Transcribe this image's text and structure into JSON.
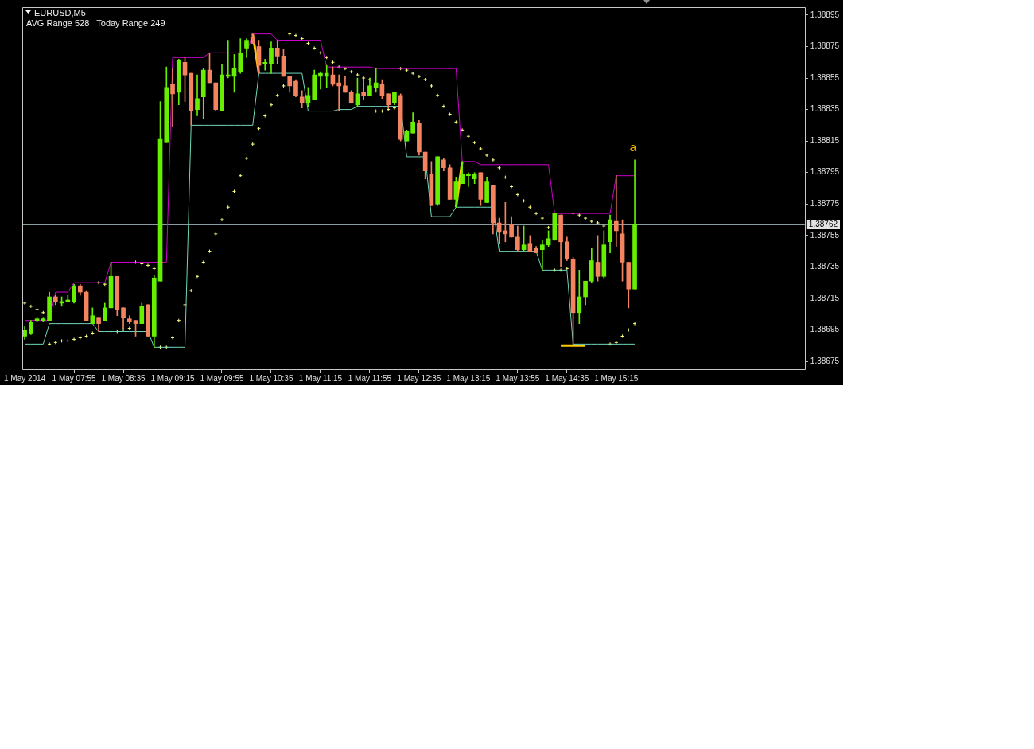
{
  "chart_data": {
    "type": "candlestick",
    "title": "EURUSD,M5",
    "subtitle": "AVG Range 528   Today Range 249",
    "x": [
      "2014-05-01T07:15",
      "2014-05-01T07:20",
      "2014-05-01T07:25",
      "2014-05-01T07:30",
      "2014-05-01T07:35",
      "2014-05-01T07:40",
      "2014-05-01T07:45",
      "2014-05-01T07:50",
      "2014-05-01T07:55",
      "2014-05-01T08:00",
      "2014-05-01T08:05",
      "2014-05-01T08:10",
      "2014-05-01T08:15",
      "2014-05-01T08:20",
      "2014-05-01T08:25",
      "2014-05-01T08:30",
      "2014-05-01T08:35",
      "2014-05-01T08:40",
      "2014-05-01T08:45",
      "2014-05-01T08:50",
      "2014-05-01T08:55",
      "2014-05-01T09:00",
      "2014-05-01T09:05",
      "2014-05-01T09:10",
      "2014-05-01T09:15",
      "2014-05-01T09:20",
      "2014-05-01T09:25",
      "2014-05-01T09:30",
      "2014-05-01T09:35",
      "2014-05-01T09:40",
      "2014-05-01T09:45",
      "2014-05-01T09:50",
      "2014-05-01T09:55",
      "2014-05-01T10:00",
      "2014-05-01T10:05",
      "2014-05-01T10:10",
      "2014-05-01T10:15",
      "2014-05-01T10:20",
      "2014-05-01T10:25",
      "2014-05-01T10:30",
      "2014-05-01T10:35",
      "2014-05-01T10:40",
      "2014-05-01T10:45",
      "2014-05-01T10:50",
      "2014-05-01T10:55",
      "2014-05-01T11:00",
      "2014-05-01T11:05",
      "2014-05-01T11:10",
      "2014-05-01T11:15",
      "2014-05-01T11:20",
      "2014-05-01T11:25",
      "2014-05-01T11:30",
      "2014-05-01T11:35",
      "2014-05-01T11:40",
      "2014-05-01T11:45",
      "2014-05-01T11:50",
      "2014-05-01T11:55",
      "2014-05-01T12:00",
      "2014-05-01T12:05",
      "2014-05-01T12:10",
      "2014-05-01T12:15",
      "2014-05-01T12:20",
      "2014-05-01T12:25",
      "2014-05-01T12:30",
      "2014-05-01T12:35",
      "2014-05-01T12:40",
      "2014-05-01T12:45",
      "2014-05-01T12:50",
      "2014-05-01T12:55",
      "2014-05-01T13:00",
      "2014-05-01T13:05",
      "2014-05-01T13:10",
      "2014-05-01T13:15",
      "2014-05-01T13:20",
      "2014-05-01T13:25",
      "2014-05-01T13:30",
      "2014-05-01T13:35",
      "2014-05-01T13:40",
      "2014-05-01T13:45",
      "2014-05-01T13:50",
      "2014-05-01T13:55",
      "2014-05-01T14:00",
      "2014-05-01T14:05",
      "2014-05-01T14:10",
      "2014-05-01T14:15",
      "2014-05-01T14:20",
      "2014-05-01T14:25",
      "2014-05-01T14:30",
      "2014-05-01T14:35",
      "2014-05-01T14:40",
      "2014-05-01T14:45",
      "2014-05-01T14:50",
      "2014-05-01T14:55",
      "2014-05-01T15:00",
      "2014-05-01T15:05",
      "2014-05-01T15:10",
      "2014-05-01T15:15",
      "2014-05-01T15:20",
      "2014-05-01T15:25",
      "2014-05-01T15:30"
    ],
    "ohlc": [
      [
        1.38691,
        1.38697,
        1.38689,
        1.38695
      ],
      [
        1.38693,
        1.38701,
        1.38692,
        1.387
      ],
      [
        1.38701,
        1.38703,
        1.387,
        1.38702
      ],
      [
        1.38701,
        1.38703,
        1.387,
        1.38702
      ],
      [
        1.38701,
        1.38719,
        1.38701,
        1.38716
      ],
      [
        1.38716,
        1.38717,
        1.38711,
        1.38713
      ],
      [
        1.38712,
        1.38716,
        1.3871,
        1.38713
      ],
      [
        1.38713,
        1.38717,
        1.38713,
        1.38714
      ],
      [
        1.38713,
        1.38724,
        1.38712,
        1.38723
      ],
      [
        1.38723,
        1.38724,
        1.38717,
        1.38719
      ],
      [
        1.38719,
        1.3872,
        1.38701,
        1.38701
      ],
      [
        1.38699,
        1.38709,
        1.38699,
        1.38704
      ],
      [
        1.38703,
        1.38703,
        1.38694,
        1.38699
      ],
      [
        1.38701,
        1.38712,
        1.38701,
        1.38709
      ],
      [
        1.38709,
        1.38738,
        1.38709,
        1.38729
      ],
      [
        1.38729,
        1.38729,
        1.38704,
        1.38708
      ],
      [
        1.38709,
        1.38709,
        1.38696,
        1.38703
      ],
      [
        1.38702,
        1.38704,
        1.38699,
        1.387
      ],
      [
        1.38701,
        1.38701,
        1.38691,
        1.38699
      ],
      [
        1.38699,
        1.38712,
        1.38699,
        1.3871
      ],
      [
        1.38711,
        1.38711,
        1.38691,
        1.38691
      ],
      [
        1.38691,
        1.3873,
        1.38684,
        1.38728
      ],
      [
        1.38726,
        1.3884,
        1.38726,
        1.38816
      ],
      [
        1.38814,
        1.38862,
        1.38814,
        1.38849
      ],
      [
        1.38851,
        1.38861,
        1.38824,
        1.38845
      ],
      [
        1.38846,
        1.38867,
        1.38838,
        1.38866
      ],
      [
        1.38865,
        1.38868,
        1.3884,
        1.38857
      ],
      [
        1.38858,
        1.38858,
        1.38825,
        1.38834
      ],
      [
        1.38835,
        1.38857,
        1.38831,
        1.38842
      ],
      [
        1.38843,
        1.38861,
        1.38829,
        1.3886
      ],
      [
        1.3886,
        1.38871,
        1.38852,
        1.38852
      ],
      [
        1.38852,
        1.38852,
        1.38834,
        1.38835
      ],
      [
        1.38834,
        1.38864,
        1.38834,
        1.38857
      ],
      [
        1.38856,
        1.38879,
        1.38855,
        1.38857
      ],
      [
        1.38856,
        1.3887,
        1.38846,
        1.38861
      ],
      [
        1.38859,
        1.3888,
        1.38858,
        1.38871
      ],
      [
        1.38874,
        1.3888,
        1.38868,
        1.38879
      ],
      [
        1.38881,
        1.38883,
        1.38877,
        1.38877
      ],
      [
        1.38875,
        1.38879,
        1.38858,
        1.38863
      ],
      [
        1.38864,
        1.38867,
        1.3886,
        1.38865
      ],
      [
        1.38864,
        1.38878,
        1.38858,
        1.38874
      ],
      [
        1.38874,
        1.38879,
        1.38864,
        1.38869
      ],
      [
        1.38869,
        1.38873,
        1.38856,
        1.38856
      ],
      [
        1.38856,
        1.38856,
        1.38846,
        1.3885
      ],
      [
        1.38853,
        1.38854,
        1.38843,
        1.38844
      ],
      [
        1.38843,
        1.38847,
        1.38836,
        1.38839
      ],
      [
        1.38839,
        1.38849,
        1.38837,
        1.38844
      ],
      [
        1.38841,
        1.3886,
        1.38841,
        1.38857
      ],
      [
        1.38856,
        1.38859,
        1.38848,
        1.38858
      ],
      [
        1.38856,
        1.38863,
        1.38849,
        1.38858
      ],
      [
        1.38857,
        1.38862,
        1.3885,
        1.38851
      ],
      [
        1.38852,
        1.38857,
        1.38834,
        1.3885
      ],
      [
        1.3885,
        1.38856,
        1.38846,
        1.38846
      ],
      [
        1.38846,
        1.38847,
        1.38839,
        1.38839
      ],
      [
        1.38838,
        1.38855,
        1.38837,
        1.38845
      ],
      [
        1.38846,
        1.38854,
        1.38841,
        1.38844
      ],
      [
        1.38844,
        1.38855,
        1.38844,
        1.3885
      ],
      [
        1.38849,
        1.38861,
        1.38846,
        1.38852
      ],
      [
        1.38851,
        1.38854,
        1.38842,
        1.38844
      ],
      [
        1.38845,
        1.38845,
        1.38836,
        1.38838
      ],
      [
        1.38839,
        1.38846,
        1.38838,
        1.38846
      ],
      [
        1.38844,
        1.38845,
        1.38815,
        1.38816
      ],
      [
        1.38815,
        1.38822,
        1.38815,
        1.38821
      ],
      [
        1.3882,
        1.38833,
        1.3882,
        1.38827
      ],
      [
        1.38826,
        1.38828,
        1.38806,
        1.38808
      ],
      [
        1.38808,
        1.38808,
        1.38791,
        1.38796
      ],
      [
        1.38794,
        1.38802,
        1.38774,
        1.38774
      ],
      [
        1.38775,
        1.38805,
        1.38774,
        1.38805
      ],
      [
        1.38803,
        1.38804,
        1.38796,
        1.38798
      ],
      [
        1.38798,
        1.388,
        1.38778,
        1.38778
      ],
      [
        1.38778,
        1.38792,
        1.38773,
        1.38789
      ],
      [
        1.38788,
        1.38802,
        1.38788,
        1.38794
      ],
      [
        1.38793,
        1.38795,
        1.38786,
        1.38794
      ],
      [
        1.38791,
        1.38795,
        1.38788,
        1.38794
      ],
      [
        1.38795,
        1.38795,
        1.38774,
        1.38778
      ],
      [
        1.38776,
        1.38792,
        1.38776,
        1.38789
      ],
      [
        1.38787,
        1.38787,
        1.38756,
        1.38763
      ],
      [
        1.38763,
        1.38766,
        1.3875,
        1.38757
      ],
      [
        1.38758,
        1.38776,
        1.38751,
        1.38756
      ],
      [
        1.38762,
        1.38767,
        1.38754,
        1.38754
      ],
      [
        1.38754,
        1.38761,
        1.38745,
        1.38746
      ],
      [
        1.38746,
        1.38761,
        1.38745,
        1.38749
      ],
      [
        1.3875,
        1.38755,
        1.38745,
        1.38745
      ],
      [
        1.38747,
        1.38748,
        1.38744,
        1.38744
      ],
      [
        1.38746,
        1.38752,
        1.38733,
        1.38749
      ],
      [
        1.38749,
        1.38758,
        1.38748,
        1.38753
      ],
      [
        1.38752,
        1.38769,
        1.38752,
        1.38769
      ],
      [
        1.38768,
        1.38768,
        1.38735,
        1.38751
      ],
      [
        1.38751,
        1.38754,
        1.38739,
        1.3874
      ],
      [
        1.3874,
        1.38741,
        1.38686,
        1.38706
      ],
      [
        1.38706,
        1.38733,
        1.38699,
        1.38716
      ],
      [
        1.38716,
        1.38726,
        1.38711,
        1.38726
      ],
      [
        1.38726,
        1.38747,
        1.38725,
        1.38739
      ],
      [
        1.38738,
        1.38755,
        1.38726,
        1.38729
      ],
      [
        1.38729,
        1.38758,
        1.38728,
        1.38749
      ],
      [
        1.38751,
        1.38768,
        1.38744,
        1.38765
      ],
      [
        1.38764,
        1.38793,
        1.38748,
        1.38758
      ],
      [
        1.38756,
        1.38765,
        1.38726,
        1.38738
      ],
      [
        1.38738,
        1.38738,
        1.38709,
        1.38721
      ],
      [
        1.38721,
        1.38803,
        1.38721,
        1.38762
      ]
    ],
    "colors": [
      "#66f000",
      "#66f000",
      "#66f000",
      "#66f000",
      "#66f000",
      "#f4845f",
      "#66f000",
      "#66f000",
      "#66f000",
      "#f4845f",
      "#f4845f",
      "#66f000",
      "#f4845f",
      "#66f000",
      "#66f000",
      "#f4845f",
      "#f4845f",
      "#f4845f",
      "#f4845f",
      "#66f000",
      "#f4845f",
      "#66f000",
      "#66f000",
      "#66f000",
      "#f4845f",
      "#66f000",
      "#f4845f",
      "#f4845f",
      "#66f000",
      "#66f000",
      "#f4845f",
      "#f4845f",
      "#66f000",
      "#66f000",
      "#66f000",
      "#66f000",
      "#66f000",
      "#f4845f",
      "#f4845f",
      "#66f000",
      "#66f000",
      "#f4845f",
      "#f4845f",
      "#f4845f",
      "#f4845f",
      "#f4845f",
      "#66f000",
      "#66f000",
      "#66f000",
      "#66f000",
      "#f4845f",
      "#f4845f",
      "#f4845f",
      "#f4845f",
      "#66f000",
      "#f4845f",
      "#66f000",
      "#66f000",
      "#f4845f",
      "#f4845f",
      "#66f000",
      "#f4845f",
      "#66f000",
      "#66f000",
      "#f4845f",
      "#f4845f",
      "#f4845f",
      "#66f000",
      "#f4845f",
      "#f4845f",
      "#66f000",
      "#66f000",
      "#66f000",
      "#66f000",
      "#f4845f",
      "#66f000",
      "#f4845f",
      "#f4845f",
      "#f4845f",
      "#f4845f",
      "#f4845f",
      "#66f000",
      "#f4845f",
      "#f4845f",
      "#66f000",
      "#66f000",
      "#66f000",
      "#f4845f",
      "#f4845f",
      "#f4845f",
      "#66f000",
      "#66f000",
      "#66f000",
      "#f4845f",
      "#66f000",
      "#66f000",
      "#f4845f",
      "#f4845f",
      "#f4845f",
      "#66f000"
    ],
    "series": [
      {
        "type": "line",
        "color": "#d000d0",
        "values": [
          1.38701,
          1.38701,
          1.38701,
          1.38701,
          1.38701,
          1.38719,
          1.38719,
          1.38719,
          1.38725,
          1.38725,
          1.38725,
          1.38725,
          1.38725,
          1.38725,
          1.38738,
          1.38738,
          1.38738,
          1.38738,
          1.38738,
          1.38738,
          1.38738,
          1.38738,
          1.38738,
          1.38738,
          1.38868,
          1.38868,
          1.38868,
          1.38868,
          1.38868,
          1.38868,
          1.38871,
          1.38871,
          1.38871,
          1.38871,
          1.38871,
          1.38871,
          1.38871,
          1.38883,
          1.38883,
          1.38883,
          1.38883,
          1.38879,
          1.38879,
          1.38879,
          1.38879,
          1.38879,
          1.38879,
          1.38879,
          1.38879,
          1.38862,
          1.38862,
          1.38862,
          1.38862,
          1.38862,
          1.38862,
          1.38862,
          1.38862,
          1.38861,
          1.38861,
          1.38861,
          1.38861,
          1.38861,
          1.38861,
          1.38861,
          1.38861,
          1.38861,
          1.38861,
          1.38861,
          1.38861,
          1.38861,
          1.38861,
          1.38802,
          1.38802,
          1.38802,
          1.388,
          1.388,
          1.388,
          1.388,
          1.388,
          1.388,
          1.388,
          1.388,
          1.388,
          1.388,
          1.388,
          1.388,
          1.38769,
          1.38769,
          1.38769,
          1.38769,
          1.38769,
          1.38769,
          1.38769,
          1.38769,
          1.38769,
          1.38769,
          1.38793,
          1.38793,
          1.38793,
          1.38793
        ]
      },
      {
        "type": "line",
        "color": "#70d8bc",
        "values": [
          1.38686,
          1.38686,
          1.38686,
          1.38686,
          1.38699,
          1.38699,
          1.38699,
          1.38699,
          1.38699,
          1.38699,
          1.38699,
          1.38699,
          1.38694,
          1.38694,
          1.38694,
          1.38694,
          1.38694,
          1.38694,
          1.38694,
          1.38694,
          1.38694,
          1.38684,
          1.38684,
          1.38684,
          1.38684,
          1.38684,
          1.38684,
          1.38825,
          1.38825,
          1.38825,
          1.38825,
          1.38825,
          1.38825,
          1.38825,
          1.38825,
          1.38825,
          1.38825,
          1.38825,
          1.38858,
          1.38858,
          1.38858,
          1.38858,
          1.38858,
          1.38858,
          1.38858,
          1.38858,
          1.38834,
          1.38834,
          1.38834,
          1.38834,
          1.38834,
          1.38835,
          1.38835,
          1.38835,
          1.38837,
          1.38837,
          1.38837,
          1.38837,
          1.38837,
          1.38837,
          1.38837,
          1.38837,
          1.38805,
          1.38805,
          1.38805,
          1.38805,
          1.38767,
          1.38767,
          1.38767,
          1.38767,
          1.38773,
          1.38773,
          1.38773,
          1.38773,
          1.38773,
          1.38773,
          1.38773,
          1.38745,
          1.38745,
          1.38745,
          1.38745,
          1.38745,
          1.38745,
          1.38745,
          1.38733,
          1.38733,
          1.38733,
          1.38733,
          1.38733,
          1.38686,
          1.38686,
          1.38686,
          1.38686,
          1.38686,
          1.38686,
          1.38686,
          1.38686,
          1.38686,
          1.38686,
          1.38686
        ]
      },
      {
        "type": "scatter",
        "color": "#ffff80",
        "marker": "cross",
        "values": [
          1.38712,
          1.3871,
          1.38708,
          1.38706,
          1.38686,
          1.38687,
          1.38688,
          1.38688,
          1.38689,
          1.3869,
          1.38691,
          1.38693,
          1.38725,
          1.38724,
          1.38694,
          1.38694,
          1.38695,
          1.38696,
          1.38738,
          1.38737,
          1.38736,
          1.38734,
          1.38684,
          1.38684,
          1.3869,
          1.38701,
          1.38711,
          1.3872,
          1.38729,
          1.38738,
          1.38745,
          1.38756,
          1.38765,
          1.38773,
          1.38783,
          1.38793,
          1.38804,
          1.38813,
          1.38823,
          1.38831,
          1.38838,
          1.38844,
          1.3885,
          1.38883,
          1.38882,
          1.3888,
          1.38877,
          1.38874,
          1.38871,
          1.38868,
          1.38865,
          1.38862,
          1.38861,
          1.38859,
          1.38857,
          1.38855,
          1.38854,
          1.38834,
          1.38834,
          1.38835,
          1.38836,
          1.38861,
          1.3886,
          1.38858,
          1.38856,
          1.38854,
          1.3885,
          1.38844,
          1.38837,
          1.38832,
          1.38827,
          1.38822,
          1.38818,
          1.38814,
          1.3881,
          1.38806,
          1.38803,
          1.38798,
          1.38792,
          1.38786,
          1.38781,
          1.38777,
          1.38773,
          1.38769,
          1.38766,
          1.3876,
          1.38733,
          1.38733,
          1.38734,
          1.38769,
          1.38768,
          1.38766,
          1.38764,
          1.38763,
          1.38761,
          1.38686,
          1.38687,
          1.38691,
          1.38695,
          1.38699
        ]
      },
      {
        "type": "line",
        "color": "#ffc800",
        "values": [
          null,
          null,
          null,
          null,
          null,
          null,
          null,
          null,
          null,
          null,
          null,
          null,
          null,
          null,
          null,
          null,
          null,
          null,
          null,
          null,
          null,
          null,
          null,
          null,
          null,
          null,
          null,
          null,
          null,
          null,
          null,
          null,
          null,
          null,
          null,
          null,
          null,
          1.38883,
          1.38858,
          null,
          null,
          null,
          null,
          null,
          null,
          null,
          null,
          null,
          null,
          null,
          null,
          null,
          null,
          null,
          null,
          null,
          null,
          null,
          null,
          null,
          null,
          null,
          null,
          null,
          null,
          null,
          null,
          null,
          null,
          null,
          1.38773,
          1.38802,
          null,
          null,
          null,
          null,
          null,
          null,
          null,
          null,
          null,
          null,
          null,
          null,
          null,
          null,
          null,
          1.38685,
          1.38685,
          1.38685,
          1.38685,
          1.38685,
          null,
          null,
          null,
          null,
          null,
          null,
          null,
          null
        ]
      }
    ],
    "xlim": [
      "2014-05-01T07:13",
      "2014-05-01T17:48"
    ],
    "xticks": [
      {
        "value": "2014-05-01T07:15",
        "label": "1 May 2014"
      },
      {
        "value": "2014-05-01T07:55",
        "label": "1 May 07:55"
      },
      {
        "value": "2014-05-01T08:35",
        "label": "1 May 08:35"
      },
      {
        "value": "2014-05-01T09:15",
        "label": "1 May 09:15"
      },
      {
        "value": "2014-05-01T09:55",
        "label": "1 May 09:55"
      },
      {
        "value": "2014-05-01T10:35",
        "label": "1 May 10:35"
      },
      {
        "value": "2014-05-01T11:15",
        "label": "1 May 11:15"
      },
      {
        "value": "2014-05-01T11:55",
        "label": "1 May 11:55"
      },
      {
        "value": "2014-05-01T12:35",
        "label": "1 May 12:35"
      },
      {
        "value": "2014-05-01T13:15",
        "label": "1 May 13:15"
      },
      {
        "value": "2014-05-01T13:55",
        "label": "1 May 13:55"
      },
      {
        "value": "2014-05-01T14:35",
        "label": "1 May 14:35"
      },
      {
        "value": "2014-05-01T15:15",
        "label": "1 May 15:15"
      }
    ],
    "ylim": [
      1.3867,
      1.389
    ],
    "yticks": [
      1.38675,
      1.38695,
      1.38715,
      1.38735,
      1.38755,
      1.38775,
      1.38795,
      1.38815,
      1.38835,
      1.38855,
      1.38875,
      1.38895
    ],
    "ref_lines": [
      {
        "axis": "y",
        "value": 1.38762,
        "label": "1.38762",
        "color": "#8a9ca0"
      }
    ],
    "annotations": [
      "a"
    ]
  }
}
